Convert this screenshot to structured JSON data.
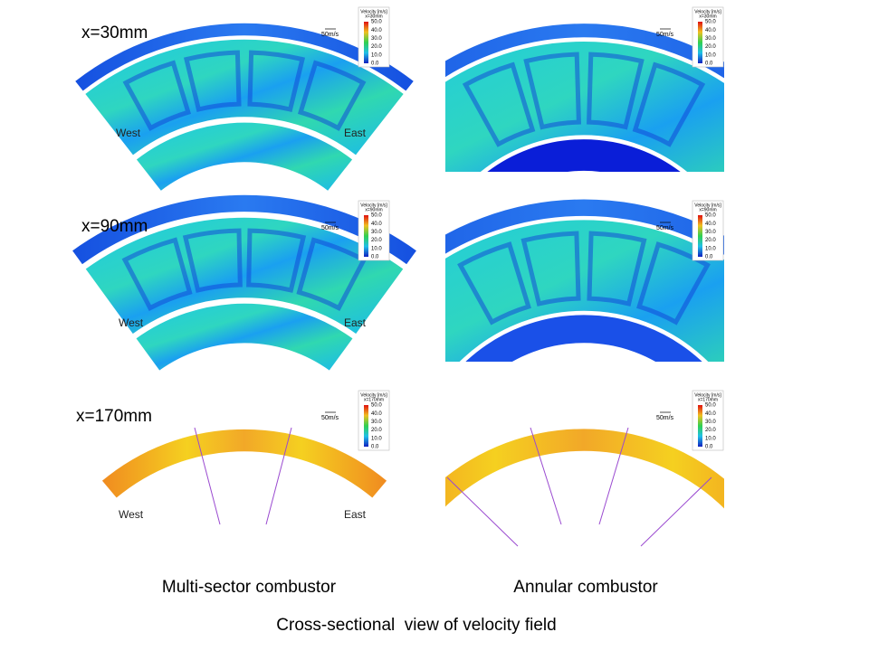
{
  "rows": [
    {
      "label": "x=30mm",
      "panels": [
        {
          "legend": {
            "title": "Velocity [m/s]",
            "subtitle": "x=30mm",
            "ticks": [
              "50.0",
              "40.0",
              "30.0",
              "20.0",
              "10.0",
              "0.0"
            ]
          },
          "arrow_label": "50m/s",
          "west": "West",
          "east": "East"
        },
        {
          "legend": {
            "title": "Velocity [m/s]",
            "subtitle": "x=30mm",
            "ticks": [
              "50.0",
              "40.0",
              "30.0",
              "20.0",
              "10.0",
              "0.0"
            ]
          },
          "arrow_label": "50m/s"
        }
      ]
    },
    {
      "label": "x=90mm",
      "panels": [
        {
          "legend": {
            "title": "Velocity [m/s]",
            "subtitle": "x=90mm",
            "ticks": [
              "50.0",
              "40.0",
              "30.0",
              "20.0",
              "10.0",
              "0.0"
            ]
          },
          "arrow_label": "50m/s",
          "west": "West",
          "east": "East"
        },
        {
          "legend": {
            "title": "Velocity [m/s]",
            "subtitle": "x=90mm",
            "ticks": [
              "50.0",
              "40.0",
              "30.0",
              "20.0",
              "10.0",
              "0.0"
            ]
          },
          "arrow_label": "50m/s"
        }
      ]
    },
    {
      "label": "x=170mm",
      "panels": [
        {
          "legend": {
            "title": "Velocity [m/s]",
            "subtitle": "x=170mm",
            "ticks": [
              "50.0",
              "40.0",
              "30.0",
              "20.0",
              "10.0",
              "0.0"
            ]
          },
          "arrow_label": "50m/s",
          "west": "West",
          "east": "East"
        },
        {
          "legend": {
            "title": "Velocity [m/s]",
            "subtitle": "x=170mm",
            "ticks": [
              "50.0",
              "40.0",
              "30.0",
              "20.0",
              "10.0",
              "0.0"
            ]
          },
          "arrow_label": "50m/s"
        }
      ]
    }
  ],
  "columns": [
    "Multi-sector combustor",
    "Annular combustor"
  ],
  "caption": "Cross-sectional  view of velocity field"
}
